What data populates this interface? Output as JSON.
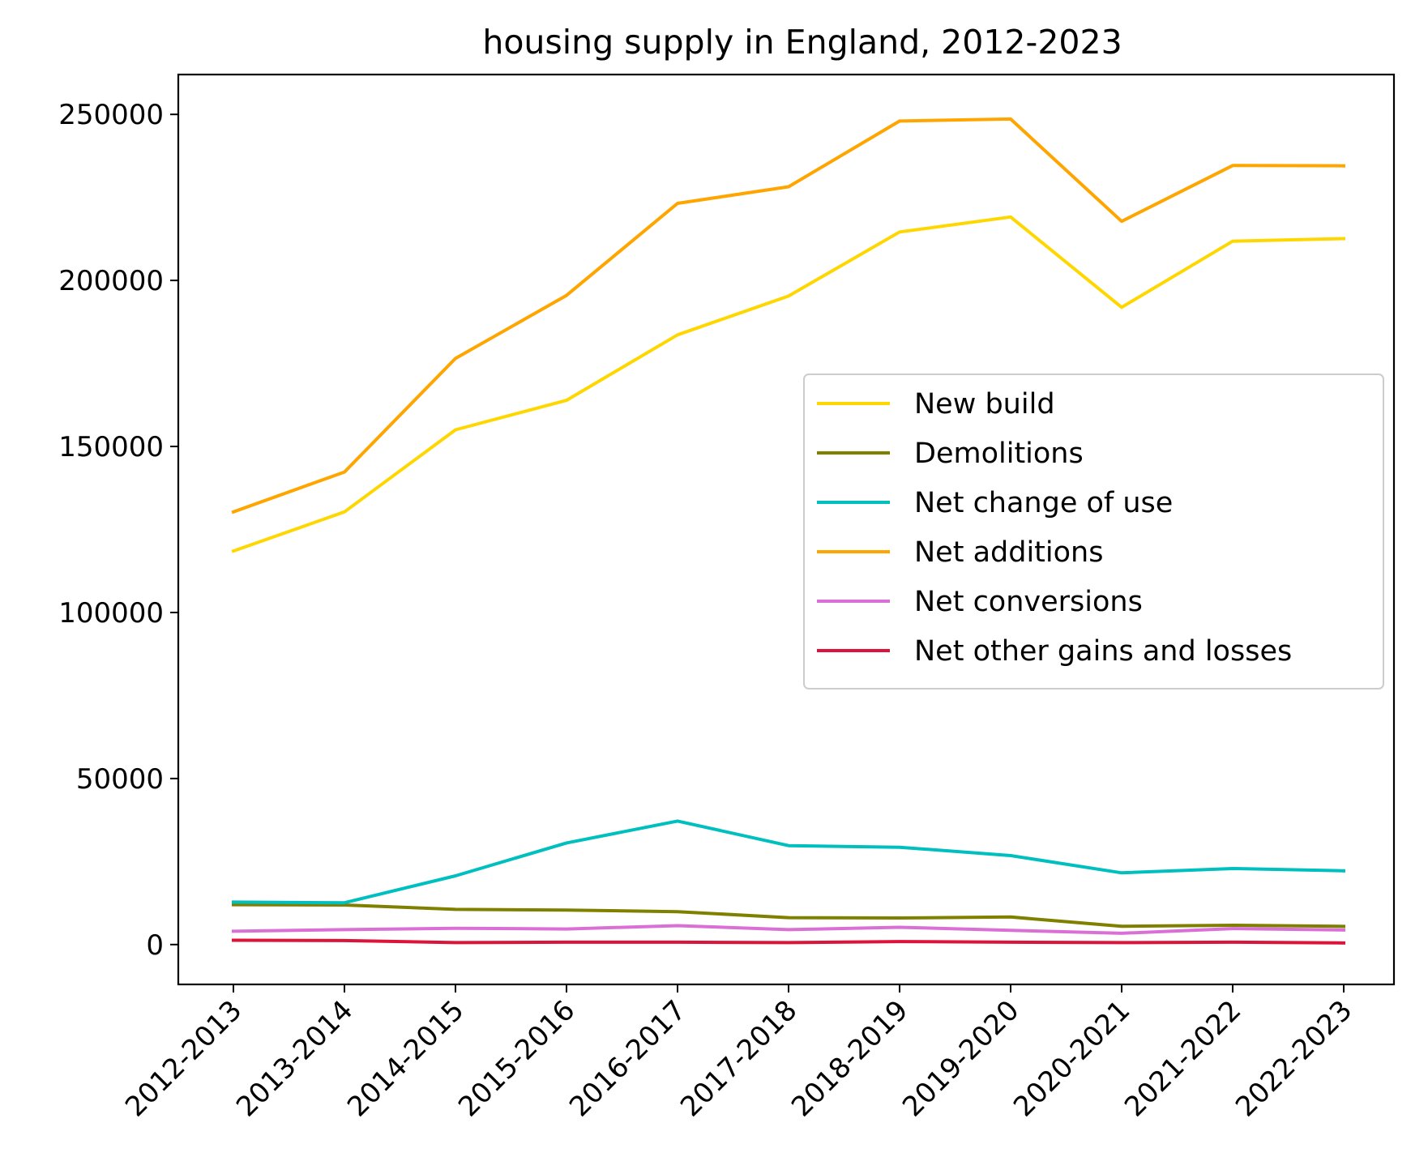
{
  "chart_data": {
    "type": "line",
    "title": "housing supply in England, 2012-2023",
    "xlabel": "",
    "ylabel": "",
    "categories": [
      "2012-2013",
      "2013-2014",
      "2014-2015",
      "2015-2016",
      "2016-2017",
      "2017-2018",
      "2018-2019",
      "2019-2020",
      "2020-2021",
      "2021-2022",
      "2022-2023"
    ],
    "ylim": [
      -12000,
      262000
    ],
    "yticks": [
      0,
      50000,
      100000,
      150000,
      200000,
      250000
    ],
    "ytick_labels": [
      "0",
      "50000",
      "100000",
      "150000",
      "200000",
      "250000"
    ],
    "grid": false,
    "legend_position": "center-right",
    "series": [
      {
        "name": "New build",
        "color": "#FFD700",
        "values": [
          118500,
          130300,
          155000,
          163900,
          183600,
          195300,
          214600,
          219100,
          191900,
          211800,
          212600
        ]
      },
      {
        "name": "Demolitions",
        "color": "#808000",
        "values": [
          12000,
          11900,
          10600,
          10400,
          9900,
          8100,
          8000,
          8300,
          5500,
          5800,
          5500
        ]
      },
      {
        "name": "Net change of use",
        "color": "#00BFBF",
        "values": [
          12800,
          12600,
          20700,
          30600,
          37200,
          29800,
          29300,
          26800,
          21600,
          22900,
          22200
        ]
      },
      {
        "name": "Net additions",
        "color": "#FFA500",
        "values": [
          130300,
          142300,
          176500,
          195500,
          223200,
          228200,
          248000,
          248600,
          217800,
          234600,
          234500
        ]
      },
      {
        "name": "Net conversions",
        "color": "#DA70D6",
        "values": [
          4000,
          4500,
          4900,
          4700,
          5700,
          4500,
          5200,
          4300,
          3400,
          4800,
          4400
        ]
      },
      {
        "name": "Net other gains and losses",
        "color": "#DC143C",
        "values": [
          1300,
          1200,
          600,
          700,
          700,
          600,
          900,
          700,
          600,
          700,
          500
        ]
      }
    ]
  }
}
